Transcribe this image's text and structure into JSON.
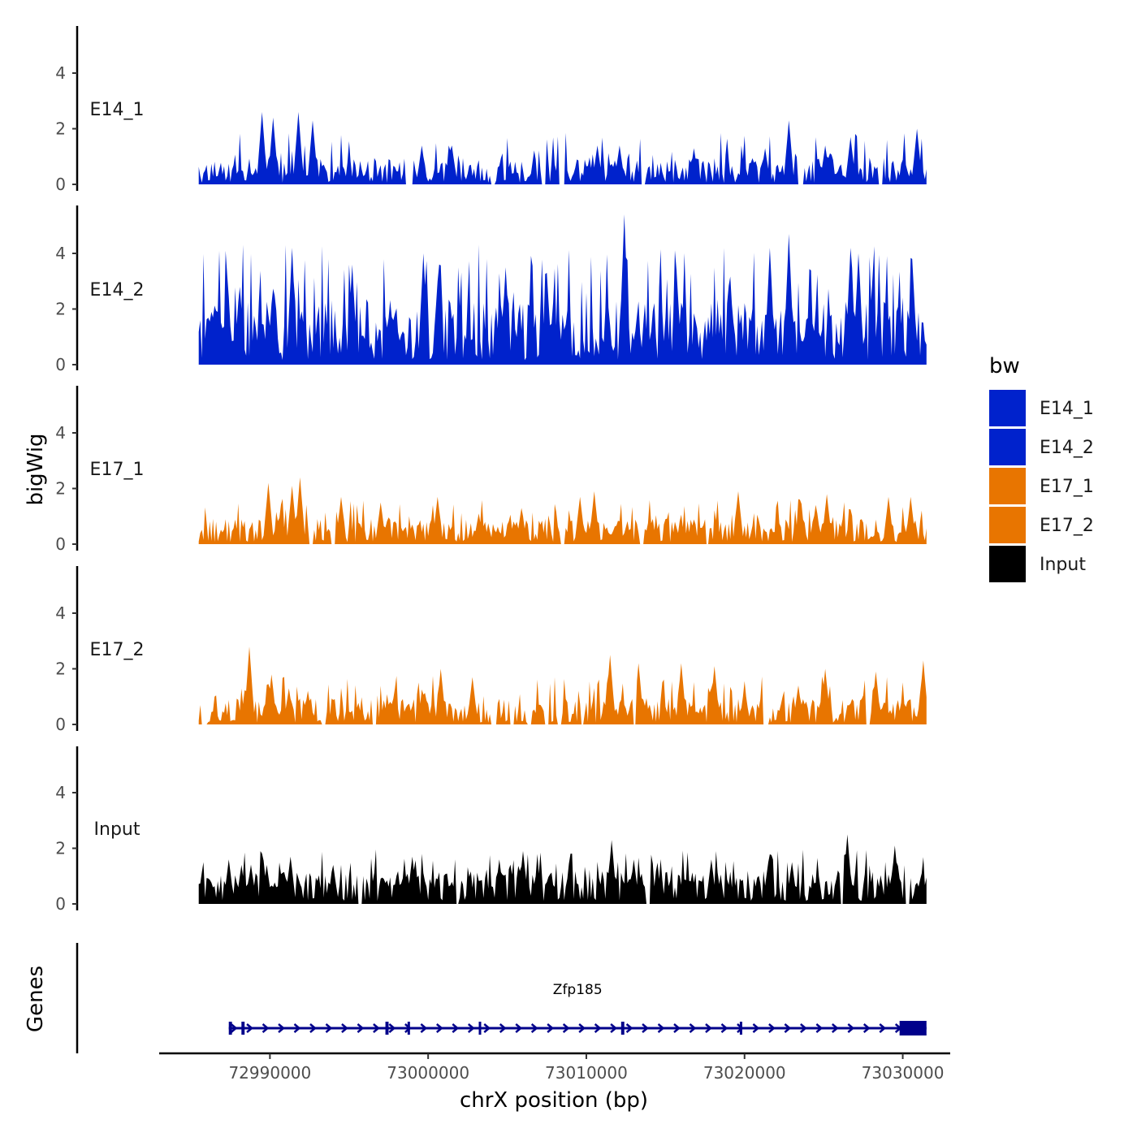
{
  "chart_data": {
    "type": "area",
    "chromosome": "chrX",
    "xlabel": "chrX position (bp)",
    "ylabel": "bigWig",
    "genes_label": "Genes",
    "xlim": [
      72983000,
      73033000
    ],
    "x_ticks": [
      72990000,
      73000000,
      73010000,
      73020000,
      73030000
    ],
    "x_tick_labels": [
      "72990000",
      "73000000",
      "73010000",
      "73020000",
      "73030000"
    ],
    "ylim": [
      0,
      5.5
    ],
    "y_ticks": [
      0,
      2,
      4
    ],
    "y_tick_labels": [
      "0",
      "2",
      "4"
    ],
    "data_range": [
      72985500,
      73031500
    ],
    "legend": {
      "title": "bw",
      "entries": [
        {
          "label": "E14_1",
          "color": "#0022CC"
        },
        {
          "label": "E14_2",
          "color": "#0022CC"
        },
        {
          "label": "E17_1",
          "color": "#E87500"
        },
        {
          "label": "E17_2",
          "color": "#E87500"
        },
        {
          "label": "Input",
          "color": "#000000"
        }
      ]
    },
    "series": [
      {
        "name": "E14_1",
        "color": "#0022CC",
        "peaks": [
          [
            72989500,
            2.6
          ],
          [
            72990200,
            2.4
          ],
          [
            72991800,
            2.6
          ],
          [
            72992700,
            2.3
          ],
          [
            72999600,
            1.4
          ],
          [
            73001500,
            1.4
          ],
          [
            73010700,
            1.4
          ],
          [
            73012100,
            1.4
          ],
          [
            73016800,
            1.3
          ],
          [
            73021300,
            1.3
          ],
          [
            73022800,
            2.3
          ],
          [
            73023500,
            2.3
          ],
          [
            73025100,
            1.4
          ],
          [
            73026700,
            1.7
          ],
          [
            73030900,
            2.0
          ]
        ],
        "gaps": [
          [
            72998600,
            72999000
          ],
          [
            73004000,
            73004200
          ],
          [
            73007200,
            73007400
          ],
          [
            73008300,
            73008600
          ],
          [
            73013500,
            73013700
          ],
          [
            73023400,
            73023700
          ],
          [
            73028500,
            73028700
          ]
        ],
        "base": 0.25,
        "noise": 1.0,
        "seed": 11
      },
      {
        "name": "E14_2",
        "color": "#0022CC",
        "peaks": [
          [
            72987300,
            3.2
          ],
          [
            72988100,
            2.8
          ],
          [
            72991400,
            4.2
          ],
          [
            72995200,
            3.6
          ],
          [
            72999700,
            4.0
          ],
          [
            73000600,
            3.0
          ],
          [
            73004900,
            3.5
          ],
          [
            73007500,
            3.3
          ],
          [
            73012400,
            5.4
          ],
          [
            73015700,
            3.4
          ],
          [
            73021600,
            4.2
          ],
          [
            73022800,
            4.7
          ],
          [
            73026700,
            4.2
          ],
          [
            73027200,
            4.0
          ],
          [
            73030600,
            3.8
          ]
        ],
        "gaps": [],
        "base": 0.8,
        "noise": 2.2,
        "seed": 23
      },
      {
        "name": "E17_1",
        "color": "#E87500",
        "peaks": [
          [
            72989900,
            2.2
          ],
          [
            72991400,
            2.1
          ],
          [
            72991900,
            2.4
          ],
          [
            72994500,
            1.7
          ],
          [
            72997000,
            1.5
          ],
          [
            73000600,
            1.7
          ],
          [
            73003200,
            1.1
          ],
          [
            73005900,
            1.3
          ],
          [
            73009600,
            1.7
          ],
          [
            73010500,
            1.9
          ],
          [
            73019600,
            1.9
          ],
          [
            73023500,
            1.6
          ],
          [
            73025200,
            1.8
          ],
          [
            73029100,
            1.7
          ],
          [
            73030500,
            1.7
          ]
        ],
        "gaps": [
          [
            72992500,
            72992700
          ],
          [
            72993900,
            72994100
          ],
          [
            73008400,
            73008600
          ],
          [
            73013400,
            73013600
          ],
          [
            73017600,
            73017700
          ]
        ],
        "base": 0.35,
        "noise": 0.8,
        "seed": 37
      },
      {
        "name": "E17_2",
        "color": "#E87500",
        "peaks": [
          [
            72988700,
            2.8
          ],
          [
            72990100,
            1.8
          ],
          [
            72991200,
            1.3
          ],
          [
            72997900,
            1.3
          ],
          [
            73000800,
            2.0
          ],
          [
            73002800,
            1.7
          ],
          [
            73011500,
            2.5
          ],
          [
            73013300,
            2.2
          ],
          [
            73016000,
            2.2
          ],
          [
            73018100,
            2.1
          ],
          [
            73020000,
            1.4
          ],
          [
            73023400,
            1.4
          ],
          [
            73025100,
            2.0
          ],
          [
            73028300,
            1.9
          ],
          [
            73031300,
            2.3
          ]
        ],
        "gaps": [
          [
            72985700,
            72986000
          ],
          [
            72993300,
            72993500
          ],
          [
            72996500,
            72996700
          ],
          [
            73004000,
            73004300
          ],
          [
            73005200,
            73005400
          ],
          [
            73006300,
            73006500
          ],
          [
            73007400,
            73007600
          ],
          [
            73008200,
            73008400
          ],
          [
            73009700,
            73009800
          ],
          [
            73013000,
            73013100
          ],
          [
            73021200,
            73021500
          ],
          [
            73027700,
            73027900
          ]
        ],
        "base": 0.3,
        "noise": 0.9,
        "seed": 53
      },
      {
        "name": "Input",
        "color": "#000000",
        "peaks": [
          [
            72987400,
            1.6
          ],
          [
            72988200,
            1.4
          ],
          [
            72989800,
            1.4
          ],
          [
            72991300,
            1.7
          ],
          [
            72994000,
            1.4
          ],
          [
            72999000,
            1.7
          ],
          [
            73004500,
            1.6
          ],
          [
            73006000,
            1.9
          ],
          [
            73011600,
            2.3
          ],
          [
            73013000,
            1.6
          ],
          [
            73017900,
            1.6
          ],
          [
            73021500,
            1.5
          ],
          [
            73023000,
            1.5
          ],
          [
            73026500,
            2.5
          ],
          [
            73029500,
            2.1
          ]
        ],
        "gaps": [
          [
            72995600,
            72995800
          ],
          [
            73001800,
            73001900
          ],
          [
            73013800,
            73014000
          ],
          [
            73026100,
            73026200
          ],
          [
            73030200,
            73030400
          ]
        ],
        "base": 0.55,
        "noise": 0.9,
        "seed": 71
      }
    ],
    "genes": [
      {
        "name": "Zfp185",
        "strand": "+",
        "start": 72987400,
        "end": 73031500,
        "exons": [
          [
            72987400,
            72987600
          ],
          [
            72988200,
            72988400
          ],
          [
            72997300,
            72997500
          ],
          [
            72998700,
            72998800
          ],
          [
            73003200,
            73003300
          ],
          [
            73012200,
            73012400
          ],
          [
            73019700,
            73019800
          ],
          [
            73029800,
            73031500
          ]
        ],
        "color": "#00008B"
      }
    ]
  }
}
